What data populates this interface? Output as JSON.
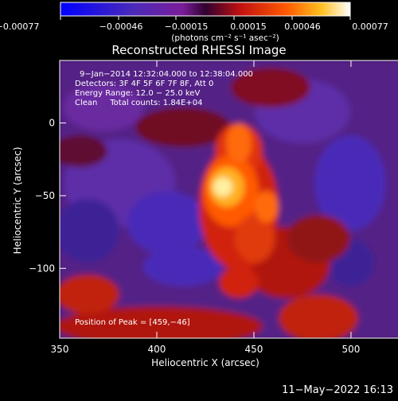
{
  "chart_data": {
    "type": "heatmap",
    "title": "Reconstructed RHESSI Image",
    "xlabel": "Heliocentric X (arcsec)",
    "ylabel": "Heliocentric Y (arcsec)",
    "xlim": [
      350,
      541
    ],
    "ylim": [
      -148,
      43
    ],
    "xticks": [
      "350",
      "400",
      "450",
      "500"
    ],
    "xtick_values": [
      350,
      400,
      450,
      500
    ],
    "yticks": [
      "0",
      "−50",
      "−100"
    ],
    "ytick_values": [
      0,
      -50,
      -100
    ],
    "colorbar": {
      "label": "(photons cm⁻² s⁻¹ asec⁻²)",
      "ticks": [
        "−0.00077",
        "−0.00046",
        "−0.00015",
        "0.00015",
        "0.00046",
        "0.00077"
      ],
      "range": [
        -0.00077,
        0.00077
      ]
    },
    "annotations": [
      "9−Jan−2014 12:32:04.000 to 12:38:04.000",
      "Detectors: 3F 4F 5F 6F 7F 8F, Att 0",
      "Energy Range: 12.0 − 25.0 keV",
      "Clean     Total counts: 1.84E+04"
    ],
    "peak_label": "Position of Peak = [459,−46]",
    "peak": [
      459,
      -46
    ],
    "grid": false
  },
  "footer": {
    "timestamp": "11−May−2022 16:13"
  }
}
